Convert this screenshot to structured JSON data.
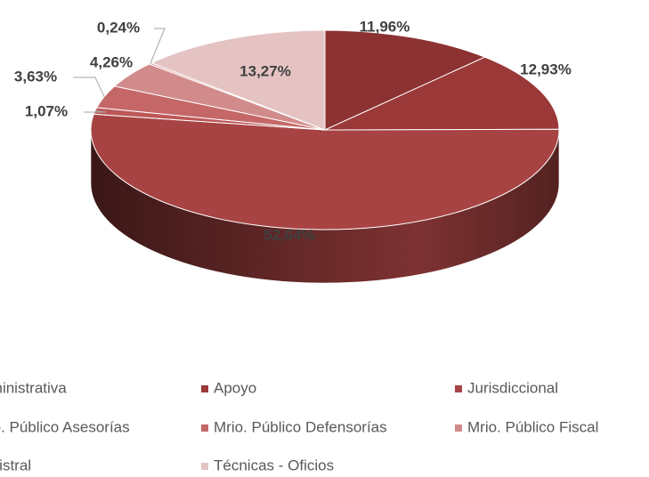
{
  "chart_data": {
    "type": "pie3d",
    "categories": [
      "Administrativa",
      "Apoyo",
      "Jurisdiccional",
      "Mrio. Público Asesorías",
      "Mrio. Público Defensorías",
      "Mrio. Público Fiscal",
      "Registral",
      "Técnicas - Oficios"
    ],
    "values": [
      11.96,
      12.93,
      52.64,
      1.07,
      3.63,
      4.26,
      0.24,
      13.27
    ],
    "value_labels": [
      "11,96%",
      "12,93%",
      "52,64%",
      "1,07%",
      "3,63%",
      "4,26%",
      "0,24%",
      "13,27%"
    ],
    "colors": [
      "#8c3232",
      "#9b3838",
      "#a84343",
      "#bd5757",
      "#c56767",
      "#d28b8b",
      "#da9f9f",
      "#e5c3c3"
    ],
    "legend": "bottom"
  }
}
